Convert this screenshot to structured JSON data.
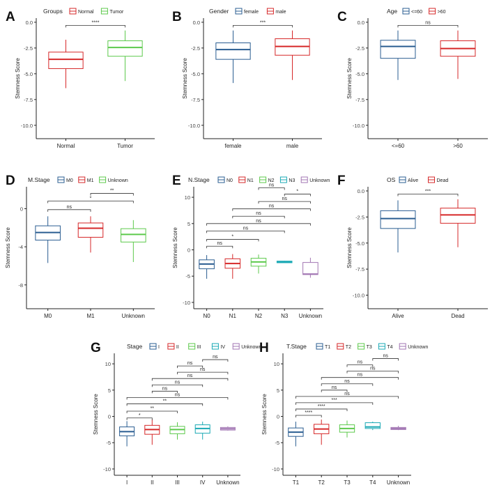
{
  "colors": {
    "red": "#d62728",
    "green": "#5cc94b",
    "blue": "#2a5d91",
    "cyan": "#1aa9b4",
    "purple": "#a276b3",
    "axis": "#222222",
    "grid_text": "#444444"
  },
  "chart_data": [
    {
      "id": "A",
      "panel_label": "A",
      "type": "box",
      "legend_title": "Groups",
      "ylabel": "Stemness Score",
      "ylim": [
        -11.3,
        0.4
      ],
      "yticks": [
        {
          "v": 0,
          "t": "0.0"
        },
        {
          "v": -2.5,
          "t": "-2.5"
        },
        {
          "v": -5,
          "t": "-5.0"
        },
        {
          "v": -7.5,
          "t": "-7.5"
        },
        {
          "v": -10,
          "t": "-10.0"
        }
      ],
      "groups": [
        {
          "name": "Normal",
          "color": "#d62728",
          "whislo": -6.4,
          "q1": -4.5,
          "med": -3.6,
          "q3": -2.9,
          "whishi": -1.7
        },
        {
          "name": "Tumor",
          "color": "#5cc94b",
          "whislo": -5.7,
          "q1": -3.3,
          "med": -2.45,
          "q3": -1.8,
          "whishi": -0.8
        }
      ],
      "comparisons": [
        {
          "a": 0,
          "b": 1,
          "y": -0.3,
          "label": "****"
        }
      ]
    },
    {
      "id": "B",
      "panel_label": "B",
      "type": "box",
      "legend_title": "Gender",
      "ylabel": "Stemness Score",
      "ylim": [
        -11.3,
        0.4
      ],
      "yticks": [
        {
          "v": 0,
          "t": "0.0"
        },
        {
          "v": -2.5,
          "t": "-2.5"
        },
        {
          "v": -5,
          "t": "-5.0"
        },
        {
          "v": -7.5,
          "t": "-7.5"
        },
        {
          "v": -10,
          "t": "-10.0"
        }
      ],
      "groups": [
        {
          "name": "female",
          "color": "#2a5d91",
          "whislo": -5.9,
          "q1": -3.6,
          "med": -2.65,
          "q3": -2.0,
          "whishi": -0.8
        },
        {
          "name": "male",
          "color": "#d62728",
          "whislo": -5.6,
          "q1": -3.2,
          "med": -2.35,
          "q3": -1.6,
          "whishi": -0.8
        }
      ],
      "comparisons": [
        {
          "a": 0,
          "b": 1,
          "y": -0.3,
          "label": "***"
        }
      ]
    },
    {
      "id": "C",
      "panel_label": "C",
      "type": "box",
      "legend_title": "Age",
      "ylabel": "Stemness Score",
      "ylim": [
        -11.3,
        0.4
      ],
      "yticks": [
        {
          "v": 0,
          "t": "0.0"
        },
        {
          "v": -2.5,
          "t": "-2.5"
        },
        {
          "v": -5,
          "t": "-5.0"
        },
        {
          "v": -7.5,
          "t": "-7.5"
        },
        {
          "v": -10,
          "t": "-10.0"
        }
      ],
      "groups": [
        {
          "name": "<=60",
          "color": "#2a5d91",
          "whislo": -5.6,
          "q1": -3.5,
          "med": -2.35,
          "q3": -1.75,
          "whishi": -0.8
        },
        {
          "name": ">60",
          "color": "#d62728",
          "whislo": -5.5,
          "q1": -3.3,
          "med": -2.55,
          "q3": -1.8,
          "whishi": -0.8
        }
      ],
      "comparisons": [
        {
          "a": 0,
          "b": 1,
          "y": -0.3,
          "label": "ns"
        }
      ]
    },
    {
      "id": "D",
      "panel_label": "D",
      "type": "box",
      "legend_title": "M.Stage",
      "ylabel": "Stemness Score",
      "ylim": [
        -10.5,
        2.3
      ],
      "yticks": [
        {
          "v": 0,
          "t": "0"
        },
        {
          "v": -4,
          "t": "-4"
        },
        {
          "v": -8,
          "t": "-8"
        }
      ],
      "groups": [
        {
          "name": "M0",
          "color": "#2a5d91",
          "whislo": -5.7,
          "q1": -3.3,
          "med": -2.5,
          "q3": -1.8,
          "whishi": -0.8
        },
        {
          "name": "M1",
          "color": "#d62728",
          "whislo": -4.6,
          "q1": -3.0,
          "med": -2.05,
          "q3": -1.5,
          "whishi": -0.8
        },
        {
          "name": "Unknown",
          "color": "#5cc94b",
          "whislo": -5.6,
          "q1": -3.5,
          "med": -2.7,
          "q3": -2.1,
          "whishi": -1.2
        }
      ],
      "comparisons": [
        {
          "a": 0,
          "b": 1,
          "y": -0.1,
          "label": "ns"
        },
        {
          "a": 0,
          "b": 2,
          "y": 0.8,
          "label": "*"
        },
        {
          "a": 1,
          "b": 2,
          "y": 1.6,
          "label": "**"
        }
      ]
    },
    {
      "id": "E",
      "panel_label": "E",
      "type": "box",
      "legend_title": "N.Stage",
      "ylabel": "Stemness Score",
      "ylim": [
        -11.2,
        12
      ],
      "yticks": [
        {
          "v": 10,
          "t": "10"
        },
        {
          "v": 5,
          "t": "5"
        },
        {
          "v": 0,
          "t": "0"
        },
        {
          "v": -5,
          "t": "-5"
        },
        {
          "v": -10,
          "t": "-10"
        }
      ],
      "groups": [
        {
          "name": "N0",
          "color": "#2a5d91",
          "whislo": -5.5,
          "q1": -3.6,
          "med": -2.7,
          "q3": -1.9,
          "whishi": -1.0
        },
        {
          "name": "N1",
          "color": "#d62728",
          "whislo": -5.5,
          "q1": -3.5,
          "med": -2.6,
          "q3": -1.7,
          "whishi": -0.8
        },
        {
          "name": "N2",
          "color": "#5cc94b",
          "whislo": -4.5,
          "q1": -3.1,
          "med": -2.3,
          "q3": -1.6,
          "whishi": -0.9
        },
        {
          "name": "N3",
          "color": "#1aa9b4",
          "whislo": -2.5,
          "q1": -2.45,
          "med": -2.3,
          "q3": -2.15,
          "whishi": -2.1
        },
        {
          "name": "Unknown",
          "color": "#a276b3",
          "whislo": -5.3,
          "q1": -4.7,
          "med": -4.6,
          "q3": -2.4,
          "whishi": -1.5
        }
      ],
      "comparisons": [
        {
          "a": 0,
          "b": 1,
          "y": 0.7,
          "label": "ns"
        },
        {
          "a": 0,
          "b": 2,
          "y": 2.0,
          "label": "*"
        },
        {
          "a": 0,
          "b": 3,
          "y": 3.6,
          "label": "ns"
        },
        {
          "a": 0,
          "b": 4,
          "y": 5.0,
          "label": "ns"
        },
        {
          "a": 1,
          "b": 3,
          "y": 6.4,
          "label": "ns"
        },
        {
          "a": 1,
          "b": 4,
          "y": 7.8,
          "label": "ns"
        },
        {
          "a": 2,
          "b": 4,
          "y": 9.2,
          "label": "ns"
        },
        {
          "a": 3,
          "b": 4,
          "y": 10.6,
          "label": "*"
        },
        {
          "a": 2,
          "b": 3,
          "y": 11.8,
          "label": "ns"
        }
      ]
    },
    {
      "id": "F",
      "panel_label": "F",
      "type": "box",
      "legend_title": "OS",
      "ylabel": "Stemness Score",
      "ylim": [
        -11.3,
        0.4
      ],
      "yticks": [
        {
          "v": 0,
          "t": "0.0"
        },
        {
          "v": -2.5,
          "t": "-2.5"
        },
        {
          "v": -5,
          "t": "-5.0"
        },
        {
          "v": -7.5,
          "t": "-7.5"
        },
        {
          "v": -10,
          "t": "-10.0"
        }
      ],
      "groups": [
        {
          "name": "Alive",
          "color": "#2a5d91",
          "whislo": -5.9,
          "q1": -3.6,
          "med": -2.65,
          "q3": -1.9,
          "whishi": -0.9
        },
        {
          "name": "Dead",
          "color": "#d62728",
          "whislo": -5.4,
          "q1": -3.1,
          "med": -2.3,
          "q3": -1.65,
          "whishi": -0.8
        }
      ],
      "comparisons": [
        {
          "a": 0,
          "b": 1,
          "y": -0.3,
          "label": "***"
        }
      ]
    },
    {
      "id": "G",
      "panel_label": "G",
      "type": "box",
      "legend_title": "Stage",
      "ylabel": "Stemness Score",
      "ylim": [
        -11.2,
        12
      ],
      "yticks": [
        {
          "v": 10,
          "t": "10"
        },
        {
          "v": 5,
          "t": "5"
        },
        {
          "v": 0,
          "t": "0"
        },
        {
          "v": -5,
          "t": "-5"
        },
        {
          "v": -10,
          "t": "-10"
        }
      ],
      "groups": [
        {
          "name": "I",
          "color": "#2a5d91",
          "whislo": -5.7,
          "q1": -3.7,
          "med": -2.9,
          "q3": -2.0,
          "whishi": -0.9
        },
        {
          "name": "II",
          "color": "#d62728",
          "whislo": -5.4,
          "q1": -3.4,
          "med": -2.5,
          "q3": -1.7,
          "whishi": -0.6
        },
        {
          "name": "III",
          "color": "#5cc94b",
          "whislo": -4.4,
          "q1": -3.3,
          "med": -2.5,
          "q3": -1.9,
          "whishi": -1.1
        },
        {
          "name": "IV",
          "color": "#1aa9b4",
          "whislo": -4.4,
          "q1": -3.2,
          "med": -2.3,
          "q3": -1.6,
          "whishi": -1.0
        },
        {
          "name": "Unknown",
          "color": "#a276b3",
          "whislo": -2.7,
          "q1": -2.6,
          "med": -2.35,
          "q3": -2.1,
          "whishi": -1.9
        }
      ],
      "comparisons": [
        {
          "a": 0,
          "b": 1,
          "y": -0.3,
          "label": "*"
        },
        {
          "a": 0,
          "b": 2,
          "y": 1.0,
          "label": "**"
        },
        {
          "a": 0,
          "b": 3,
          "y": 2.4,
          "label": "**"
        },
        {
          "a": 0,
          "b": 4,
          "y": 3.6,
          "label": "ns"
        },
        {
          "a": 1,
          "b": 2,
          "y": 4.8,
          "label": "ns"
        },
        {
          "a": 1,
          "b": 3,
          "y": 6.0,
          "label": "ns"
        },
        {
          "a": 1,
          "b": 4,
          "y": 7.2,
          "label": "ns"
        },
        {
          "a": 2,
          "b": 4,
          "y": 8.4,
          "label": "ns"
        },
        {
          "a": 2,
          "b": 3,
          "y": 9.6,
          "label": "ns"
        },
        {
          "a": 3,
          "b": 4,
          "y": 10.8,
          "label": "ns"
        }
      ]
    },
    {
      "id": "H",
      "panel_label": "H",
      "type": "box",
      "legend_title": "T.Stage",
      "ylabel": "Stemness Score",
      "ylim": [
        -11.2,
        12
      ],
      "yticks": [
        {
          "v": 10,
          "t": "10"
        },
        {
          "v": 5,
          "t": "5"
        },
        {
          "v": 0,
          "t": "0"
        },
        {
          "v": -5,
          "t": "-5"
        },
        {
          "v": -10,
          "t": "-10"
        }
      ],
      "groups": [
        {
          "name": "T1",
          "color": "#2a5d91",
          "whislo": -5.7,
          "q1": -3.8,
          "med": -3.0,
          "q3": -2.2,
          "whishi": -1.0
        },
        {
          "name": "T2",
          "color": "#d62728",
          "whislo": -5.4,
          "q1": -3.3,
          "med": -2.4,
          "q3": -1.5,
          "whishi": -0.6
        },
        {
          "name": "T3",
          "color": "#5cc94b",
          "whislo": -4.0,
          "q1": -3.0,
          "med": -2.3,
          "q3": -1.6,
          "whishi": -0.8
        },
        {
          "name": "T4",
          "color": "#1aa9b4",
          "whislo": -2.6,
          "q1": -2.3,
          "med": -2.0,
          "q3": -1.2,
          "whishi": -1.0
        },
        {
          "name": "Unknown",
          "color": "#a276b3",
          "whislo": -2.6,
          "q1": -2.5,
          "med": -2.3,
          "q3": -2.1,
          "whishi": -1.8
        }
      ],
      "comparisons": [
        {
          "a": 0,
          "b": 1,
          "y": 0.2,
          "label": "****"
        },
        {
          "a": 0,
          "b": 2,
          "y": 1.4,
          "label": "****"
        },
        {
          "a": 0,
          "b": 3,
          "y": 2.6,
          "label": "***"
        },
        {
          "a": 0,
          "b": 4,
          "y": 3.8,
          "label": "ns"
        },
        {
          "a": 1,
          "b": 2,
          "y": 5.0,
          "label": "ns"
        },
        {
          "a": 1,
          "b": 3,
          "y": 6.2,
          "label": "ns"
        },
        {
          "a": 1,
          "b": 4,
          "y": 7.4,
          "label": "ns"
        },
        {
          "a": 2,
          "b": 4,
          "y": 8.6,
          "label": "ns"
        },
        {
          "a": 2,
          "b": 3,
          "y": 9.8,
          "label": "ns"
        },
        {
          "a": 3,
          "b": 4,
          "y": 11.0,
          "label": "ns"
        }
      ]
    }
  ]
}
